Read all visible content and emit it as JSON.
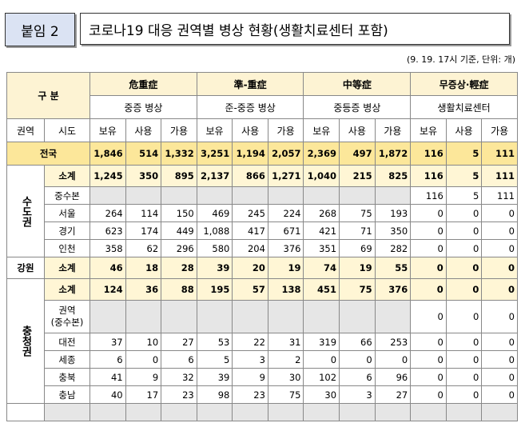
{
  "header": {
    "tag": "붙임 2",
    "title": "코로나19 대응 권역별 병상 현황(생활치료센터 포함)",
    "note": "(9. 19. 17시 기준, 단위: 개)"
  },
  "table": {
    "group_label": "구 분",
    "groups": [
      {
        "name": "危重症",
        "sub": "중증 병상"
      },
      {
        "name": "準-重症",
        "sub": "준-중증 병상"
      },
      {
        "name": "中等症",
        "sub": "중등증 병상"
      },
      {
        "name": "무증상·輕症",
        "sub": "생활치료센터"
      }
    ],
    "key_headers": [
      "권역",
      "시도"
    ],
    "measure_headers": [
      "보유",
      "사용",
      "가용"
    ],
    "national": {
      "name": "전국",
      "cells": [
        "1,846",
        "514",
        "1,332",
        "3,251",
        "1,194",
        "2,057",
        "2,369",
        "497",
        "1,872",
        "116",
        "5",
        "111"
      ]
    },
    "regions": [
      {
        "name": "수도권",
        "rows": [
          {
            "name": "소계",
            "subtotal": true,
            "cells": [
              "1,245",
              "350",
              "895",
              "2,137",
              "866",
              "1,271",
              "1,040",
              "215",
              "825",
              "116",
              "5",
              "111"
            ]
          },
          {
            "name": "중수본",
            "cells": [
              null,
              null,
              null,
              null,
              null,
              null,
              null,
              null,
              null,
              "116",
              "5",
              "111"
            ]
          },
          {
            "name": "서울",
            "cells": [
              "264",
              "114",
              "150",
              "469",
              "245",
              "224",
              "268",
              "75",
              "193",
              "0",
              "0",
              "0"
            ]
          },
          {
            "name": "경기",
            "cells": [
              "623",
              "174",
              "449",
              "1,088",
              "417",
              "671",
              "421",
              "71",
              "350",
              "0",
              "0",
              "0"
            ]
          },
          {
            "name": "인천",
            "cells": [
              "358",
              "62",
              "296",
              "580",
              "204",
              "376",
              "351",
              "69",
              "282",
              "0",
              "0",
              "0"
            ]
          }
        ]
      },
      {
        "name": "강원",
        "rows": [
          {
            "name": "소계",
            "subtotal": true,
            "cells": [
              "46",
              "18",
              "28",
              "39",
              "20",
              "19",
              "74",
              "19",
              "55",
              "0",
              "0",
              "0"
            ]
          }
        ]
      },
      {
        "name": "충청권",
        "rows": [
          {
            "name": "소계",
            "subtotal": true,
            "cells": [
              "124",
              "36",
              "88",
              "195",
              "57",
              "138",
              "451",
              "75",
              "376",
              "0",
              "0",
              "0"
            ]
          },
          {
            "name": "권역\n(중수본)",
            "tall": true,
            "cells": [
              null,
              null,
              null,
              null,
              null,
              null,
              null,
              null,
              null,
              "0",
              "0",
              "0"
            ]
          },
          {
            "name": "대전",
            "cells": [
              "37",
              "10",
              "27",
              "53",
              "22",
              "31",
              "319",
              "66",
              "253",
              "0",
              "0",
              "0"
            ]
          },
          {
            "name": "세종",
            "cells": [
              "6",
              "0",
              "6",
              "5",
              "3",
              "2",
              "0",
              "0",
              "0",
              "0",
              "0",
              "0"
            ]
          },
          {
            "name": "충북",
            "cells": [
              "41",
              "9",
              "32",
              "39",
              "9",
              "30",
              "102",
              "6",
              "96",
              "0",
              "0",
              "0"
            ]
          },
          {
            "name": "충남",
            "cells": [
              "40",
              "17",
              "23",
              "98",
              "23",
              "75",
              "30",
              "3",
              "27",
              "0",
              "0",
              "0"
            ]
          }
        ]
      }
    ]
  }
}
